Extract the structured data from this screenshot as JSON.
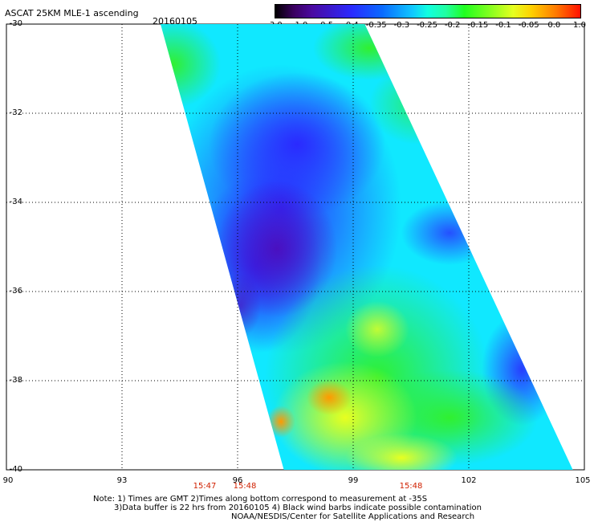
{
  "header": {
    "title": "ASCAT 25KM MLE-1 ascending",
    "date": "20160105"
  },
  "colorbar": {
    "ticks": [
      "-3.0",
      "-1.0",
      "-0.5",
      "-0.4",
      "-0.35",
      "-0.3",
      "-0.25",
      "-0.2",
      "-0.15",
      "-0.1",
      "-0.05",
      "0.0",
      "1.0"
    ]
  },
  "axes": {
    "lat_labels": [
      "-30",
      "-32",
      "-34",
      "-36",
      "-38",
      "-40"
    ],
    "lon_labels": [
      "90",
      "93",
      "96",
      "99",
      "102",
      "105"
    ],
    "lat_range": [
      -40,
      -30
    ],
    "lon_range": [
      90,
      105
    ]
  },
  "swath": {
    "times": [
      "15:47",
      "15:48",
      "15:48"
    ],
    "corners_lonlat": {
      "top_left": [
        94.0,
        -30.0
      ],
      "top_right": [
        99.3,
        -30.0
      ],
      "bottom_right": [
        104.7,
        -40.0
      ],
      "bottom_left": [
        97.2,
        -40.0
      ]
    }
  },
  "notes": {
    "line1": "Note: 1) Times are GMT 2)Times along bottom correspond to measurement at -35S",
    "line2": "3)Data buffer is 22 hrs from 20160105 4) Black wind barbs indicate possible contamination",
    "line3": "NOAA/NESDIS/Center for Satellite Applications and Research"
  },
  "colors": {
    "deep_blue": "#4a10c8",
    "blue": "#2a4aff",
    "cyan": "#10f0ff",
    "green": "#20f040",
    "yellow": "#f0ff20",
    "orange": "#ff9a00"
  }
}
